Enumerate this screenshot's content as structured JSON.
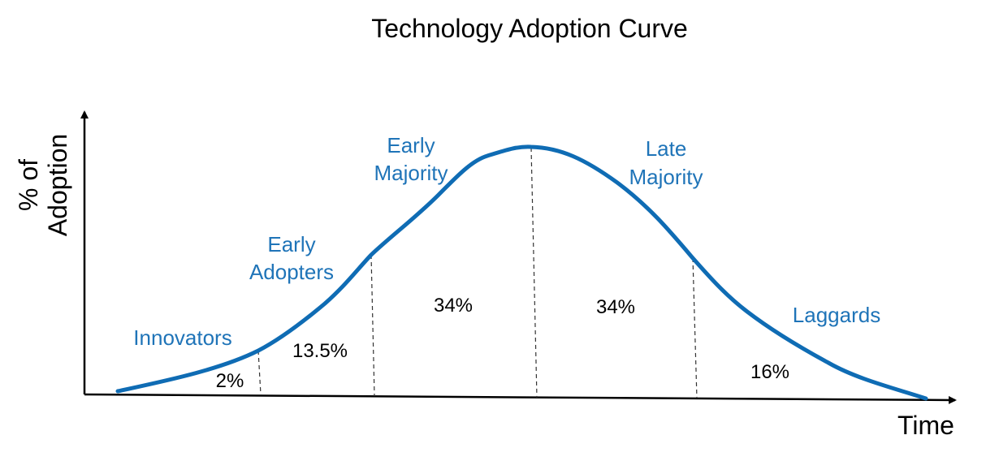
{
  "title": "Technology Adoption Curve",
  "y_axis_label": [
    "% of",
    "Adoption"
  ],
  "x_axis_label": "Time",
  "colors": {
    "curve": "#0f6cb4",
    "label": "#1f74b8",
    "axis": "#000000",
    "divider": "#333333"
  },
  "segments": [
    {
      "name_lines": [
        "Innovators"
      ],
      "percent": "2%"
    },
    {
      "name_lines": [
        "Early",
        "Adopters"
      ],
      "percent": "13.5%"
    },
    {
      "name_lines": [
        "Early",
        "Majority"
      ],
      "percent": "34%"
    },
    {
      "name_lines": [
        "Late",
        "Majority"
      ],
      "percent": "34%"
    },
    {
      "name_lines": [
        "Laggards"
      ],
      "percent": "16%"
    }
  ]
}
